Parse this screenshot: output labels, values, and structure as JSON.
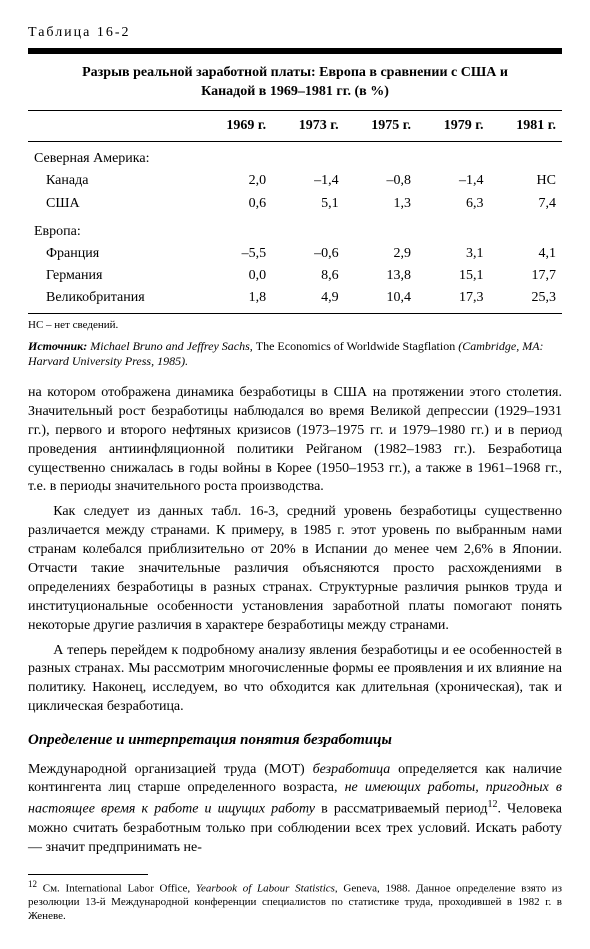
{
  "table_label": "Таблица 16-2",
  "table_title_l1": "Разрыв реальной заработной платы: Европа в сравнении с США и",
  "table_title_l2": "Канадой в 1969–1981 гг. (в %)",
  "headers": {
    "blank": "",
    "c1": "1969 г.",
    "c2": "1973 г.",
    "c3": "1975 г.",
    "c4": "1979 г.",
    "c5": "1981 г."
  },
  "sections": {
    "na_label": "Северная Америка:",
    "eu_label": "Европа:"
  },
  "rows": {
    "canada": {
      "label": "Канада",
      "v1": "2,0",
      "v2": "–1,4",
      "v3": "–0,8",
      "v4": "–1,4",
      "v5": "НС"
    },
    "usa": {
      "label": "США",
      "v1": "0,6",
      "v2": "5,1",
      "v3": "1,3",
      "v4": "6,3",
      "v5": "7,4"
    },
    "france": {
      "label": "Франция",
      "v1": "–5,5",
      "v2": "–0,6",
      "v3": "2,9",
      "v4": "3,1",
      "v5": "4,1"
    },
    "germany": {
      "label": "Германия",
      "v1": "0,0",
      "v2": "8,6",
      "v3": "13,8",
      "v4": "15,1",
      "v5": "17,7"
    },
    "uk": {
      "label": "Великобритания",
      "v1": "1,8",
      "v2": "4,9",
      "v3": "10,4",
      "v4": "17,3",
      "v5": "25,3"
    }
  },
  "note": "НС – нет сведений.",
  "source_label": "Источник:",
  "source_authors": "Michael Bruno and Jeffrey Sachs,",
  "source_book": "The Economics of Worldwide Stagflation",
  "source_pub": "(Cambridge, MA: Harvard University Press, 1985).",
  "para1": "на котором отображена динамика безработицы в США на протяжении этого столетия. Значительный рост безработицы наблюдался во время Великой депрессии (1929–1931 гг.), первого и второго нефтяных кризисов (1973–1975 гг. и 1979–1980 гг.) и в период проведения антиинфляционной политики Рейганом (1982–1983 гг.). Безработица существенно снижалась в годы войны в Корее (1950–1953 гг.), а также в 1961–1968 гг., т.е. в периоды значительного роста производства.",
  "para2": "Как следует из данных табл. 16-3, средний уровень безработицы существенно различается между странами. К примеру, в 1985 г. этот уровень по выбранным нами странам колебался приблизительно от 20% в Испании до менее чем 2,6% в Японии. Отчасти такие значительные различия объясняются просто расхождениями в определениях безработицы в разных странах. Структурные различия рынков труда и институциональные особенности установления заработной платы помогают понять некоторые другие различия в характере безработицы между странами.",
  "para3": "А теперь перейдем к подробному анализу явления безработицы и ее особенностей в разных странах. Мы рассмотрим многочисленные формы ее проявления и их влияние на политику. Наконец, исследуем, во что обходится как длительная (хроническая), так и циклическая безработица.",
  "subheading": "Определение и интерпретация понятия безработицы",
  "para4_a": "Международной организацией труда (МОТ) ",
  "para4_b": "безработица",
  "para4_c": " определяется как наличие контингента лиц старше определенного возраста, ",
  "para4_d": "не имеющих работы, пригодных в настоящее время к работе и ищущих работу",
  "para4_e": " в рассматриваемый период",
  "para4_f": ". Человека можно считать безработным только при соблюдении всех трех условий. Искать работу — значит предпринимать не-",
  "footnote_num": "12",
  "footnote_a": " См. International Labor Office, ",
  "footnote_b": "Yearbook of Labour Statistics",
  "footnote_c": ", Geneva, 1988. Данное определение взято из резолюции 13-й Международной конференции специалистов по статистике труда, проходившей в 1982 г. в Женеве."
}
